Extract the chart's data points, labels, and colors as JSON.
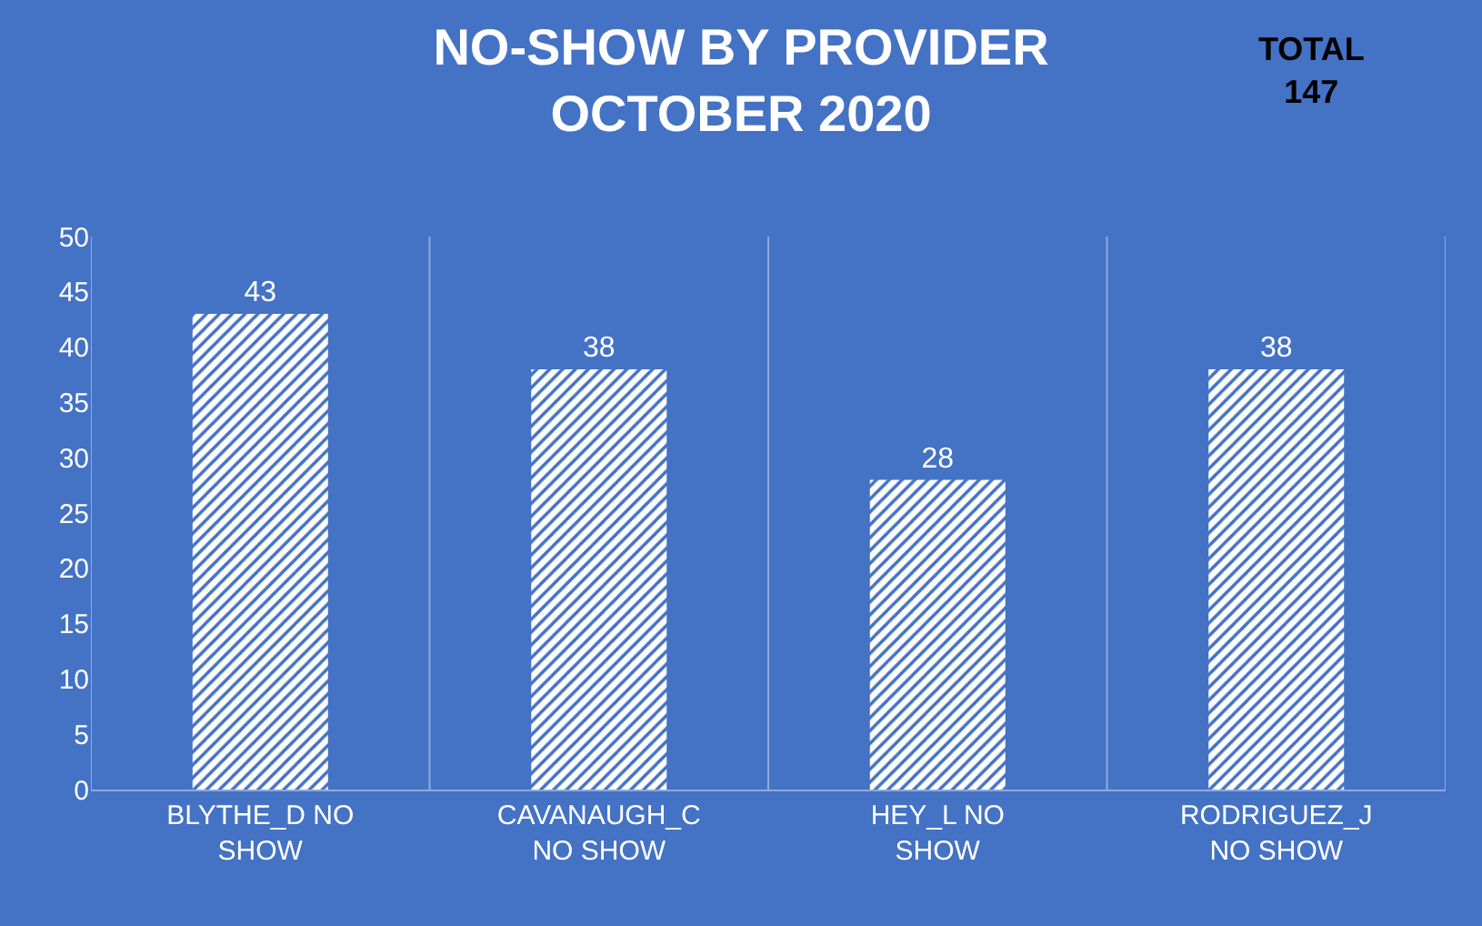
{
  "chart_data": {
    "type": "bar",
    "title": "NO-SHOW BY PROVIDER\nOCTOBER 2020",
    "annotations": [
      "TOTAL\n147"
    ],
    "categories": [
      "BLYTHE_D NO SHOW",
      "CAVANAUGH_C NO SHOW",
      "HEY_L NO SHOW",
      "RODRIGUEZ_J NO SHOW"
    ],
    "values": [
      43,
      38,
      28,
      38
    ],
    "color": "#ffffff",
    "ylim": [
      0,
      50
    ],
    "yticks": [
      0,
      5,
      10,
      15,
      20,
      25,
      30,
      35,
      40,
      45,
      50
    ],
    "grid": "x",
    "data_labels": true
  }
}
